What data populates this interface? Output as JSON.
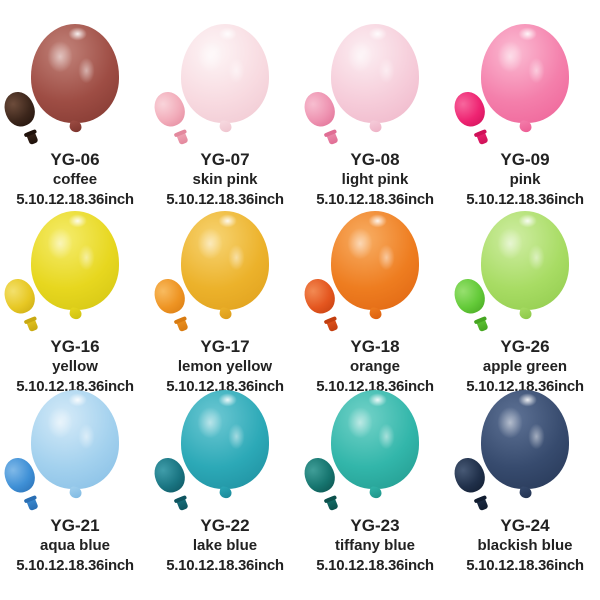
{
  "page": {
    "background": "#ffffff",
    "text_color": "#222222"
  },
  "products": [
    {
      "code": "YG-06",
      "name": "coffee",
      "sizes": "5.10.12.18.36inch",
      "balloon": {
        "main": "#9e4d44",
        "light": "#c2837a",
        "dark": "#7a322b"
      },
      "mini": {
        "main": "#3c261b",
        "light": "#6d4c3b",
        "dark": "#1f110b"
      }
    },
    {
      "code": "YG-07",
      "name": "skin pink",
      "sizes": "5.10.12.18.36inch",
      "balloon": {
        "main": "#f8dbe1",
        "light": "#fdf5f6",
        "dark": "#eec2cd"
      },
      "mini": {
        "main": "#f2acba",
        "light": "#f9d4da",
        "dark": "#e3889d"
      }
    },
    {
      "code": "YG-08",
      "name": "light pink",
      "sizes": "5.10.12.18.36inch",
      "balloon": {
        "main": "#f6cdda",
        "light": "#fceef2",
        "dark": "#edafc4"
      },
      "mini": {
        "main": "#ee93b1",
        "light": "#f7bed0",
        "dark": "#e06d94"
      }
    },
    {
      "code": "YG-09",
      "name": "pink",
      "sizes": "5.10.12.18.36inch",
      "balloon": {
        "main": "#f47fab",
        "light": "#fbbcd3",
        "dark": "#ec5a92"
      },
      "mini": {
        "main": "#ee2472",
        "light": "#f7679d",
        "dark": "#cf1158"
      }
    },
    {
      "code": "YG-16",
      "name": "yellow",
      "sizes": "5.10.12.18.36inch",
      "balloon": {
        "main": "#e7d71f",
        "light": "#f5ec6c",
        "dark": "#cdbf10"
      },
      "mini": {
        "main": "#e7c824",
        "light": "#f3e06c",
        "dark": "#c9a912"
      }
    },
    {
      "code": "YG-17",
      "name": "lemon yellow",
      "sizes": "5.10.12.18.36inch",
      "balloon": {
        "main": "#ecb22b",
        "light": "#f7d473",
        "dark": "#db9a19"
      },
      "mini": {
        "main": "#ee9423",
        "light": "#f8bb60",
        "dark": "#d87b11"
      }
    },
    {
      "code": "YG-18",
      "name": "orange",
      "sizes": "5.10.12.18.36inch",
      "balloon": {
        "main": "#ee7d20",
        "light": "#f8ae64",
        "dark": "#db5e0e"
      },
      "mini": {
        "main": "#e4561f",
        "light": "#f28a53",
        "dark": "#c23e0f"
      }
    },
    {
      "code": "YG-26",
      "name": "apple green",
      "sizes": "5.10.12.18.36inch",
      "balloon": {
        "main": "#a8dc64",
        "light": "#cfeda3",
        "dark": "#8ac646"
      },
      "mini": {
        "main": "#63ca38",
        "light": "#97e06f",
        "dark": "#46a521"
      }
    },
    {
      "code": "YG-21",
      "name": "aqua blue",
      "sizes": "5.10.12.18.36inch",
      "balloon": {
        "main": "#a3d1ee",
        "light": "#d4eaf8",
        "dark": "#7db8e2"
      },
      "mini": {
        "main": "#3f90d6",
        "light": "#80b9e8",
        "dark": "#296eb3"
      }
    },
    {
      "code": "YG-22",
      "name": "lake blue",
      "sizes": "5.10.12.18.36inch",
      "balloon": {
        "main": "#2ca9b7",
        "light": "#6dc8d3",
        "dark": "#1a8596"
      },
      "mini": {
        "main": "#1a7582",
        "light": "#409daa",
        "dark": "#0e545f"
      }
    },
    {
      "code": "YG-23",
      "name": "tiffany blue",
      "sizes": "5.10.12.18.36inch",
      "balloon": {
        "main": "#32b6aa",
        "light": "#73d2c8",
        "dark": "#1e9186"
      },
      "mini": {
        "main": "#16756f",
        "light": "#409e98",
        "dark": "#0c504c"
      }
    },
    {
      "code": "YG-24",
      "name": "blackish blue",
      "sizes": "5.10.12.18.36inch",
      "balloon": {
        "main": "#374b6e",
        "light": "#5e7295",
        "dark": "#21314f"
      },
      "mini": {
        "main": "#20304a",
        "light": "#475975",
        "dark": "#111c2f"
      }
    }
  ]
}
